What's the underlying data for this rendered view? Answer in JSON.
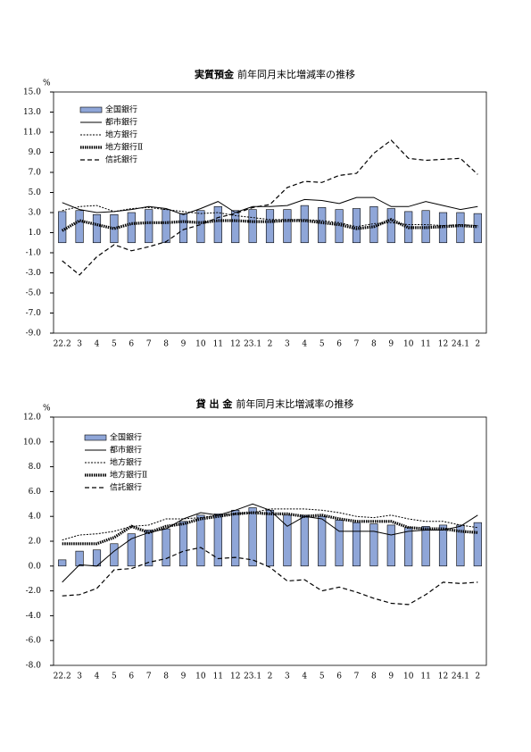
{
  "chart_data": [
    {
      "type": "bar-line",
      "title": "実質預金",
      "subtitle": "前年同月末比増減率の推移",
      "ylabel": "%",
      "categories": [
        "22.2",
        "3",
        "4",
        "5",
        "6",
        "7",
        "8",
        "9",
        "10",
        "11",
        "12",
        "23.1",
        "2",
        "3",
        "4",
        "5",
        "6",
        "7",
        "8",
        "9",
        "10",
        "11",
        "12",
        "24.1",
        "2"
      ],
      "ylim": [
        -9,
        15
      ],
      "yticks": [
        {
          "value": -9,
          "label": "-9.0"
        },
        {
          "value": -7,
          "label": "-7.0"
        },
        {
          "value": -5,
          "label": "-5.0"
        },
        {
          "value": -3,
          "label": "-3.0"
        },
        {
          "value": -1,
          "label": "-1.0"
        },
        {
          "value": 1,
          "label": "1.0"
        },
        {
          "value": 3,
          "label": "3.0"
        },
        {
          "value": 5,
          "label": "5.0"
        },
        {
          "value": 7,
          "label": "7.0"
        },
        {
          "value": 9,
          "label": "9.0"
        },
        {
          "value": 11,
          "label": "11.0"
        },
        {
          "value": 13,
          "label": "13.0"
        },
        {
          "value": 15,
          "label": "15.0"
        }
      ],
      "series": [
        {
          "name": "全国銀行",
          "kind": "bar",
          "color": "#8fa6d8",
          "values": [
            3.1,
            3.2,
            2.8,
            2.8,
            3.0,
            3.3,
            3.3,
            2.9,
            3.2,
            3.6,
            3.2,
            3.3,
            3.3,
            3.3,
            3.7,
            3.5,
            3.3,
            3.4,
            3.6,
            3.4,
            3.1,
            3.2,
            3.0,
            3.0,
            2.9
          ]
        },
        {
          "name": "都市銀行",
          "kind": "solid",
          "color": "#000000",
          "values": [
            4.0,
            3.3,
            3.0,
            3.1,
            3.3,
            3.6,
            3.4,
            2.8,
            3.4,
            4.1,
            3.0,
            3.6,
            3.6,
            3.7,
            4.3,
            4.2,
            3.9,
            4.5,
            4.5,
            3.6,
            3.6,
            4.1,
            3.7,
            3.3,
            3.6
          ]
        },
        {
          "name": "地方銀行",
          "kind": "dotted",
          "color": "#000000",
          "values": [
            3.2,
            3.6,
            3.7,
            3.1,
            3.4,
            3.5,
            3.3,
            3.1,
            2.9,
            3.0,
            2.7,
            2.5,
            2.3,
            2.3,
            2.3,
            2.2,
            2.0,
            1.6,
            1.9,
            2.0,
            1.8,
            1.8,
            1.7,
            1.8,
            1.7
          ]
        },
        {
          "name": "地方銀行Ⅱ",
          "kind": "thick-dotted",
          "color": "#000000",
          "values": [
            1.2,
            2.2,
            1.8,
            1.4,
            1.9,
            2.0,
            2.0,
            2.1,
            2.0,
            2.2,
            2.2,
            2.1,
            2.1,
            2.2,
            2.2,
            2.0,
            1.8,
            1.4,
            1.6,
            2.3,
            1.5,
            1.5,
            1.6,
            1.7,
            1.6
          ]
        },
        {
          "name": "信託銀行",
          "kind": "dashed",
          "color": "#000000",
          "values": [
            -1.8,
            -3.2,
            -1.4,
            -0.2,
            -0.8,
            -0.4,
            0.1,
            1.3,
            1.8,
            2.5,
            2.9,
            3.5,
            3.8,
            5.5,
            6.1,
            6.0,
            6.7,
            6.9,
            8.9,
            10.2,
            8.4,
            8.2,
            8.3,
            8.4,
            6.8
          ]
        }
      ]
    },
    {
      "type": "bar-line",
      "title": "貸 出 金",
      "subtitle": "前年同月末比増減率の推移",
      "ylabel": "%",
      "categories": [
        "22.2",
        "3",
        "4",
        "5",
        "6",
        "7",
        "8",
        "9",
        "10",
        "11",
        "12",
        "23.1",
        "2",
        "3",
        "4",
        "5",
        "6",
        "7",
        "8",
        "9",
        "10",
        "11",
        "12",
        "24.1",
        "2"
      ],
      "ylim": [
        -8,
        12
      ],
      "yticks": [
        {
          "value": -8,
          "label": "-8.0"
        },
        {
          "value": -6,
          "label": "-6.0"
        },
        {
          "value": -4,
          "label": "-4.0"
        },
        {
          "value": -2,
          "label": "-2.0"
        },
        {
          "value": 0,
          "label": "0.0"
        },
        {
          "value": 2,
          "label": "2.0"
        },
        {
          "value": 4,
          "label": "4.0"
        },
        {
          "value": 6,
          "label": "6.0"
        },
        {
          "value": 8,
          "label": "8.0"
        },
        {
          "value": 10,
          "label": "10.0"
        },
        {
          "value": 12,
          "label": "12.0"
        }
      ],
      "series": [
        {
          "name": "全国銀行",
          "kind": "bar",
          "color": "#8fa6d8",
          "values": [
            0.5,
            1.2,
            1.3,
            1.8,
            2.6,
            2.9,
            3.0,
            3.6,
            4.1,
            4.2,
            4.5,
            4.7,
            4.5,
            4.1,
            4.1,
            4.0,
            3.7,
            3.5,
            3.4,
            3.3,
            3.1,
            3.2,
            3.3,
            3.3,
            3.5
          ]
        },
        {
          "name": "都市銀行",
          "kind": "solid",
          "color": "#000000",
          "values": [
            -1.3,
            0.1,
            0.0,
            1.2,
            2.2,
            2.7,
            3.0,
            3.8,
            4.3,
            4.1,
            4.5,
            5.0,
            4.5,
            3.2,
            4.0,
            3.8,
            2.8,
            2.8,
            2.8,
            2.5,
            2.8,
            2.9,
            2.9,
            3.2,
            4.1
          ]
        },
        {
          "name": "地方銀行",
          "kind": "dotted",
          "color": "#000000",
          "values": [
            2.1,
            2.5,
            2.6,
            2.8,
            3.2,
            3.3,
            3.8,
            3.8,
            3.9,
            4.1,
            4.2,
            4.3,
            4.6,
            4.6,
            4.6,
            4.5,
            4.3,
            4.0,
            3.9,
            4.1,
            3.8,
            3.6,
            3.6,
            3.3,
            3.1
          ]
        },
        {
          "name": "地方銀行Ⅱ",
          "kind": "thick-dotted",
          "color": "#000000",
          "values": [
            1.8,
            1.8,
            1.8,
            2.3,
            3.2,
            2.7,
            3.2,
            3.4,
            3.8,
            4.0,
            4.2,
            4.3,
            4.2,
            4.2,
            4.0,
            4.1,
            3.8,
            3.6,
            3.6,
            3.6,
            3.1,
            3.0,
            3.0,
            2.8,
            2.7
          ]
        },
        {
          "name": "信託銀行",
          "kind": "dashed",
          "color": "#000000",
          "values": [
            -2.4,
            -2.3,
            -1.8,
            -0.3,
            -0.2,
            0.3,
            0.6,
            1.2,
            1.5,
            0.6,
            0.7,
            0.5,
            -0.1,
            -1.2,
            -1.1,
            -2.0,
            -1.7,
            -2.1,
            -2.6,
            -3.0,
            -3.1,
            -2.3,
            -1.3,
            -1.4,
            -1.3
          ]
        }
      ]
    }
  ]
}
